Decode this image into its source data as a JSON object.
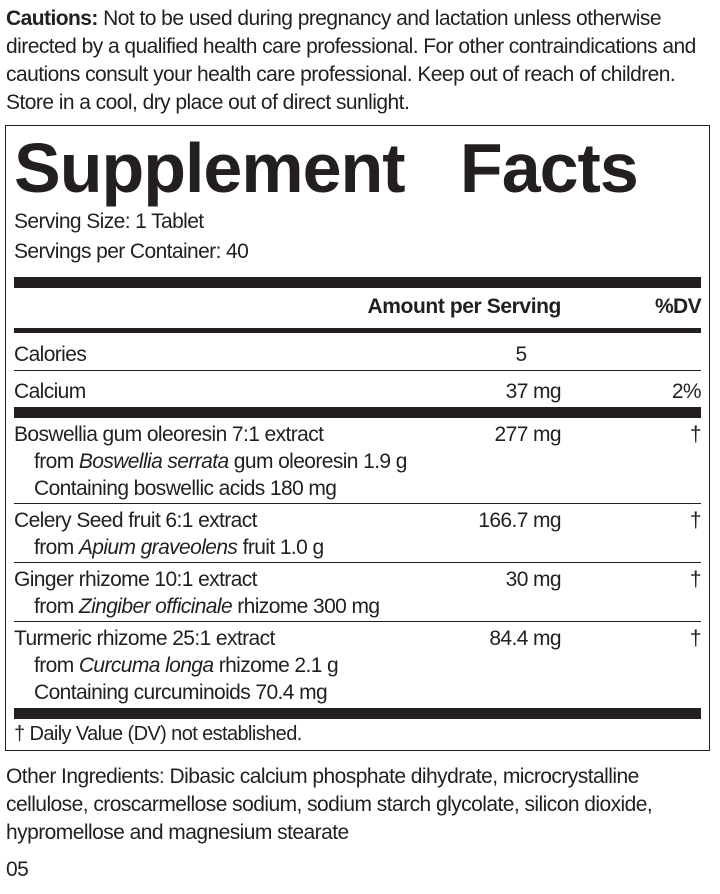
{
  "cautions": {
    "label": "Cautions:",
    "text": " Not to be used during pregnancy and lactation unless otherwise directed by a qualified health care professional. For other contraindications and cautions consult your health care professional. Keep out of reach of children. Store in a cool, dry place out of direct sunlight."
  },
  "facts": {
    "title": "Supplement   Facts",
    "serving_size": "Serving Size: 1 Tablet",
    "servings_per_container": "Servings per Container: 40",
    "header_amount": "Amount per Serving",
    "header_dv": "%DV",
    "rows": [
      {
        "name": "Calories",
        "amount": "5",
        "dv": ""
      },
      {
        "name": "Calcium",
        "amount": "37 mg",
        "dv": "2%"
      },
      {
        "name": "Boswellia gum oleoresin 7:1 extract",
        "amount": "277 mg",
        "dv": "†",
        "sub1_pre": "from ",
        "sub1_it": "Boswellia serrata",
        "sub1_post": " gum oleoresin 1.9 g",
        "sub2": "Containing boswellic acids 180 mg"
      },
      {
        "name": "Celery Seed fruit 6:1 extract",
        "amount": "166.7 mg",
        "dv": "†",
        "sub1_pre": "from ",
        "sub1_it": "Apium graveolens",
        "sub1_post": " fruit 1.0 g"
      },
      {
        "name": "Ginger rhizome 10:1 extract",
        "amount": "30 mg",
        "dv": "†",
        "sub1_pre": "from ",
        "sub1_it": "Zingiber officinale",
        "sub1_post": " rhizome 300 mg"
      },
      {
        "name": "Turmeric rhizome 25:1 extract",
        "amount": "84.4 mg",
        "dv": "†",
        "sub1_pre": "from ",
        "sub1_it": "Curcuma longa",
        "sub1_post": " rhizome 2.1 g",
        "sub2": "Containing curcuminoids 70.4 mg"
      }
    ],
    "footnote": "† Daily Value (DV) not established."
  },
  "other_ingredients": "Other Ingredients: Dibasic calcium phosphate dihydrate, microcrystalline cellulose, croscarmellose sodium, sodium starch glycolate, silicon dioxide, hypromellose and magnesium stearate",
  "code": "05"
}
